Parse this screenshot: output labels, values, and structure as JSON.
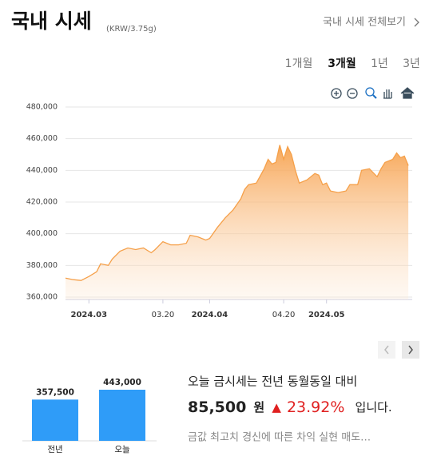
{
  "header": {
    "title": "국내 시세",
    "unit": "(KRW/3.75g)",
    "link": "국내 시세 전체보기"
  },
  "tabs": [
    "1개월",
    "3개월",
    "1년",
    "3년"
  ],
  "selected_tab": 1,
  "chart_data": [
    {
      "type": "area",
      "x": [
        "2024-02-24",
        "2024-02-26",
        "2024-02-28",
        "2024-03-01",
        "2024-03-03",
        "2024-03-04",
        "2024-03-06",
        "2024-03-07",
        "2024-03-09",
        "2024-03-11",
        "2024-03-13",
        "2024-03-15",
        "2024-03-17",
        "2024-03-18",
        "2024-03-20",
        "2024-03-22",
        "2024-03-24",
        "2024-03-26",
        "2024-03-27",
        "2024-03-29",
        "2024-03-31",
        "2024-04-01",
        "2024-04-03",
        "2024-04-05",
        "2024-04-07",
        "2024-04-09",
        "2024-04-10",
        "2024-04-11",
        "2024-04-13",
        "2024-04-15",
        "2024-04-16",
        "2024-04-17",
        "2024-04-18",
        "2024-04-19",
        "2024-04-20",
        "2024-04-21",
        "2024-04-22",
        "2024-04-23",
        "2024-04-24",
        "2024-04-26",
        "2024-04-28",
        "2024-04-29",
        "2024-04-30",
        "2024-05-01",
        "2024-05-02",
        "2024-05-04",
        "2024-05-06",
        "2024-05-07",
        "2024-05-09",
        "2024-05-10",
        "2024-05-12",
        "2024-05-14",
        "2024-05-15",
        "2024-05-16",
        "2024-05-18",
        "2024-05-19",
        "2024-05-20",
        "2024-05-21",
        "2024-05-22"
      ],
      "values": [
        372000,
        371000,
        370500,
        373000,
        376000,
        381000,
        380000,
        384000,
        389000,
        391000,
        390000,
        391000,
        388000,
        390000,
        395000,
        393000,
        393000,
        394000,
        399000,
        398000,
        396000,
        397000,
        404000,
        410000,
        415000,
        422000,
        428000,
        431000,
        432000,
        441000,
        447000,
        444000,
        445000,
        456000,
        447000,
        455000,
        450000,
        440000,
        432000,
        434000,
        438000,
        437000,
        431000,
        432000,
        427000,
        426000,
        427000,
        431000,
        431000,
        440000,
        441000,
        436000,
        441000,
        445000,
        447000,
        451000,
        448000,
        449000,
        443000
      ],
      "color": "#f5a04a",
      "xlim": [
        "2024-02-24",
        "2024-05-23"
      ],
      "xticks": [
        {
          "value": "2024-03-01",
          "label": "2024.03"
        },
        {
          "value": "2024-03-20",
          "label": "03.20"
        },
        {
          "value": "2024-04-01",
          "label": "2024.04"
        },
        {
          "value": "2024-04-20",
          "label": "04.20"
        },
        {
          "value": "2024-05-01",
          "label": "2024.05"
        }
      ],
      "ylim": [
        360000,
        480000
      ],
      "yticks": [
        {
          "value": 360000,
          "label": "360,000"
        },
        {
          "value": 380000,
          "label": "380,000"
        },
        {
          "value": 400000,
          "label": "400,000"
        },
        {
          "value": 420000,
          "label": "420,000"
        },
        {
          "value": 440000,
          "label": "440,000"
        },
        {
          "value": 460000,
          "label": "460,000"
        },
        {
          "value": 480000,
          "label": "480,000"
        }
      ],
      "grid": true
    },
    {
      "type": "bar",
      "categories": [
        "전년",
        "오늘"
      ],
      "values": [
        357500,
        443000
      ],
      "value_labels": [
        "357,500",
        "443,000"
      ],
      "color": "#2f9cf8"
    }
  ],
  "summary": {
    "line1": "오늘 금시세는 전년 동월동일 대비",
    "diff": "85,500",
    "currency": "원",
    "arrow": "▲",
    "rate": "23.92%",
    "tail": "입니다.",
    "news": "금값 최고치 경신에 따른 차익 실현 매도…"
  }
}
